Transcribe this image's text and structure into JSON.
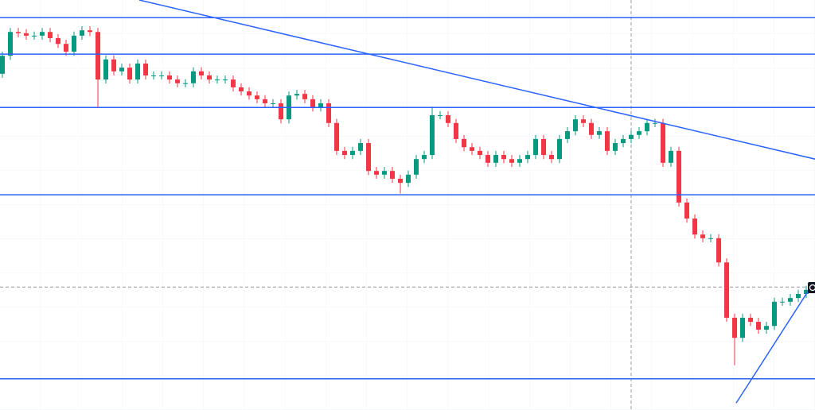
{
  "chart_data": {
    "type": "candlestick",
    "up_color": "#089981",
    "down_color": "#f23645",
    "line_color": "#2962ff",
    "xlim": [
      -0.3,
      102.1
    ],
    "ylim": [
      0,
      100
    ],
    "open": [
      82.0,
      86.4,
      92.2,
      91.9,
      91.3,
      91.3,
      92.2,
      90.7,
      89.3,
      87.4,
      91.3,
      92.6,
      92.2,
      80.6,
      85.5,
      82.6,
      83.5,
      80.6,
      84.5,
      81.6,
      81.6,
      81.6,
      80.6,
      79.7,
      79.7,
      82.6,
      81.6,
      80.6,
      80.6,
      80.6,
      78.7,
      77.7,
      76.7,
      75.8,
      74.8,
      74.8,
      70.9,
      76.7,
      77.1,
      75.8,
      73.8,
      74.8,
      70.0,
      63.2,
      62.2,
      63.2,
      65.1,
      58.3,
      57.4,
      58.3,
      56.4,
      55.4,
      57.4,
      61.2,
      62.2,
      71.9,
      71.9,
      70.0,
      66.1,
      64.1,
      63.2,
      62.2,
      60.3,
      62.2,
      61.2,
      60.3,
      61.2,
      62.2,
      66.1,
      62.2,
      61.2,
      66.1,
      68.0,
      70.9,
      70.0,
      67.1,
      68.0,
      63.2,
      65.1,
      66.1,
      67.1,
      68.0,
      70.0,
      70.0,
      60.3,
      63.2,
      50.6,
      46.7,
      42.8,
      41.9,
      41.9,
      36.0,
      22.5,
      17.6,
      22.5,
      21.5,
      19.6,
      20.5,
      26.4,
      26.4,
      27.3,
      28.3
    ],
    "high": [
      87.4,
      93.2,
      93.2,
      92.9,
      92.3,
      93.2,
      93.2,
      91.7,
      90.3,
      92.3,
      93.6,
      93.6,
      93.2,
      86.5,
      86.5,
      84.5,
      84.5,
      85.5,
      85.5,
      82.6,
      82.6,
      82.6,
      81.6,
      80.7,
      83.6,
      83.6,
      82.6,
      81.6,
      81.6,
      81.6,
      79.7,
      78.7,
      77.7,
      76.8,
      75.8,
      75.8,
      77.7,
      78.1,
      78.1,
      76.8,
      75.8,
      75.8,
      71.0,
      64.2,
      64.2,
      66.1,
      66.1,
      59.3,
      59.3,
      59.3,
      57.4,
      58.4,
      62.2,
      63.2,
      74.0,
      72.9,
      72.9,
      71.0,
      67.1,
      65.1,
      64.2,
      63.2,
      63.2,
      63.2,
      62.2,
      62.2,
      63.2,
      67.1,
      67.1,
      63.2,
      67.1,
      69.0,
      71.9,
      71.9,
      71.0,
      69.0,
      69.0,
      66.1,
      67.1,
      68.1,
      69.0,
      71.0,
      71.0,
      71.0,
      64.2,
      64.2,
      51.6,
      47.7,
      43.8,
      42.9,
      42.9,
      37.0,
      23.5,
      23.5,
      23.5,
      22.5,
      21.5,
      27.4,
      27.4,
      28.3,
      29.3,
      30.3
    ],
    "low": [
      81.0,
      85.4,
      90.9,
      90.3,
      90.3,
      90.3,
      89.7,
      88.3,
      86.4,
      86.4,
      90.3,
      91.2,
      73.8,
      79.6,
      81.6,
      81.6,
      79.6,
      79.6,
      80.6,
      80.6,
      80.6,
      79.6,
      78.7,
      78.7,
      78.7,
      80.6,
      79.6,
      79.6,
      79.6,
      77.7,
      76.7,
      75.7,
      74.8,
      73.8,
      73.8,
      69.9,
      69.9,
      75.7,
      74.8,
      72.8,
      72.8,
      69.0,
      62.2,
      61.2,
      61.2,
      62.2,
      57.3,
      56.4,
      56.4,
      55.4,
      52.8,
      54.4,
      56.4,
      60.2,
      61.2,
      70.9,
      69.0,
      65.1,
      63.1,
      62.2,
      61.2,
      59.3,
      59.3,
      60.2,
      59.3,
      59.3,
      60.2,
      61.2,
      61.2,
      60.2,
      60.2,
      65.1,
      67.0,
      69.0,
      66.1,
      66.1,
      62.2,
      62.2,
      64.1,
      65.1,
      66.1,
      67.0,
      69.0,
      59.3,
      59.3,
      49.6,
      45.7,
      41.8,
      40.9,
      40.9,
      35.0,
      21.5,
      10.9,
      16.6,
      20.5,
      18.6,
      18.6,
      19.5,
      25.4,
      25.4,
      26.3,
      27.3
    ],
    "close": [
      86.4,
      92.2,
      91.9,
      91.3,
      91.3,
      92.2,
      90.7,
      89.3,
      87.4,
      91.3,
      92.6,
      92.2,
      80.6,
      85.5,
      82.6,
      83.5,
      80.6,
      84.5,
      81.6,
      81.6,
      81.6,
      80.6,
      79.7,
      79.7,
      82.6,
      81.6,
      80.6,
      80.6,
      80.6,
      78.7,
      77.7,
      76.7,
      75.8,
      74.8,
      74.8,
      70.9,
      76.7,
      77.1,
      75.8,
      73.8,
      74.8,
      70.0,
      63.2,
      62.2,
      63.2,
      65.1,
      58.3,
      57.4,
      58.3,
      56.4,
      55.4,
      57.4,
      61.2,
      62.2,
      71.9,
      71.9,
      70.0,
      66.1,
      64.1,
      63.2,
      62.2,
      60.3,
      62.2,
      61.2,
      60.3,
      61.2,
      62.2,
      66.1,
      62.2,
      61.2,
      66.1,
      68.0,
      70.9,
      70.0,
      67.1,
      68.0,
      63.2,
      65.1,
      66.1,
      67.1,
      68.0,
      70.0,
      70.0,
      60.3,
      63.2,
      50.6,
      46.7,
      42.8,
      41.9,
      41.9,
      36.0,
      22.5,
      17.6,
      22.5,
      21.5,
      19.6,
      20.5,
      26.4,
      26.4,
      27.3,
      28.3,
      29.3
    ],
    "levels": [
      95.7,
      86.8,
      73.8,
      52.5,
      7.6
    ],
    "trend_lines": [
      {
        "x": [
          17.2,
          102.1
        ],
        "y": [
          100,
          61.2
        ]
      },
      {
        "x": [
          92.2,
          101.5
        ],
        "y": [
          1.7,
          29.8
        ]
      }
    ],
    "crosshair": {
      "x": 79.0,
      "y": 30.0
    }
  }
}
